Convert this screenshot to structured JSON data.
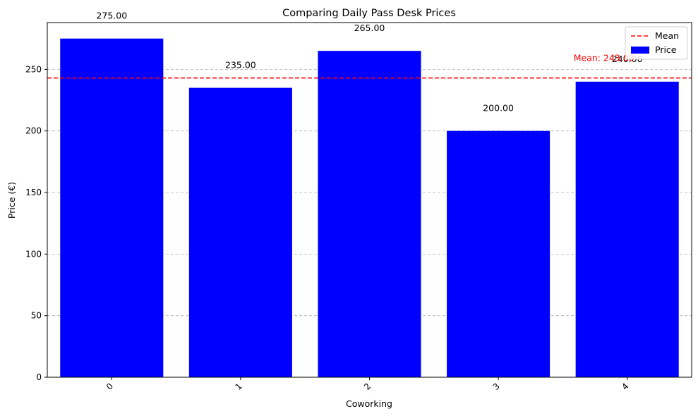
{
  "chart_data": {
    "type": "bar",
    "title": "Comparing Daily Pass Desk Prices",
    "xlabel": "Coworking",
    "ylabel": "Price (€)",
    "categories": [
      "0",
      "1",
      "2",
      "3",
      "4"
    ],
    "values": [
      275,
      235,
      265,
      200,
      240
    ],
    "value_labels": [
      "275.00",
      "235.00",
      "265.00",
      "200.00",
      "240.00"
    ],
    "ylim": [
      0,
      288
    ],
    "yticks": [
      0,
      50,
      100,
      150,
      200,
      250
    ],
    "grid": "y-dashed",
    "bar_color": "#0000ff",
    "mean": {
      "value": 243,
      "label": "Mean: 243.00",
      "color": "#ff0000"
    },
    "legend": {
      "placement": "top-right",
      "entries": [
        {
          "label": "Mean",
          "kind": "line",
          "color": "#ff0000"
        },
        {
          "label": "Price",
          "kind": "patch",
          "color": "#0000ff"
        }
      ]
    }
  }
}
